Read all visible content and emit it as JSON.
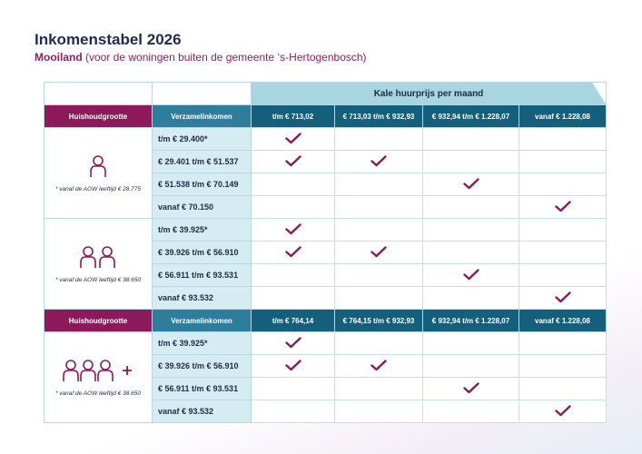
{
  "title": "Inkomenstabel 2026",
  "subtitle": {
    "bold": "Mooiland",
    "rest": " (voor de woningen buiten de gemeente ‘s-Hertogenbosch)"
  },
  "header": {
    "kale": "Kale huurprijs per maand"
  },
  "sections": [
    {
      "hh_label": "Huishoudgrootte",
      "vz_label": "Verzamelinkomen",
      "columns": [
        "t/m € 713,02",
        "€ 713,03 t/m € 932,93",
        "€ 932,94 t/m € 1.228,07",
        "vanaf € 1.228,08"
      ],
      "groups": [
        {
          "icon": "one-person-icon",
          "note": "* vanaf de AOW leeftijd € 28.775",
          "rows": [
            {
              "income": "t/m € 29.400*",
              "checks": [
                true,
                false,
                false,
                false
              ]
            },
            {
              "income": "€ 29.401 t/m € 51.537",
              "checks": [
                true,
                true,
                false,
                false
              ]
            },
            {
              "income": "€ 51.538 t/m € 70.149",
              "checks": [
                false,
                false,
                true,
                false
              ]
            },
            {
              "income": "vanaf € 70.150",
              "checks": [
                false,
                false,
                false,
                true
              ]
            }
          ]
        },
        {
          "icon": "two-persons-icon",
          "note": "* vanaf de AOW leeftijd € 38.650",
          "rows": [
            {
              "income": "t/m € 39.925*",
              "checks": [
                true,
                false,
                false,
                false
              ]
            },
            {
              "income": "€ 39.926 t/m € 56.910",
              "checks": [
                true,
                true,
                false,
                false
              ]
            },
            {
              "income": "€ 56.911 t/m € 93.531",
              "checks": [
                false,
                false,
                true,
                false
              ]
            },
            {
              "income": "vanaf € 93.532",
              "checks": [
                false,
                false,
                false,
                true
              ]
            }
          ]
        }
      ]
    },
    {
      "hh_label": "Huishoudgrootte",
      "vz_label": "Verzamelinkomen",
      "columns": [
        "t/m € 764,14",
        "€ 764,15 t/m € 932,93",
        "€ 932,94 t/m € 1.228,07",
        "vanaf € 1.228,08"
      ],
      "groups": [
        {
          "icon": "three-plus-persons-icon",
          "note": "* vanaf de AOW leeftijd € 38.650",
          "rows": [
            {
              "income": "t/m € 39.925*",
              "checks": [
                true,
                false,
                false,
                false
              ]
            },
            {
              "income": "€ 39.926 t/m € 56.910",
              "checks": [
                true,
                true,
                false,
                false
              ]
            },
            {
              "income": "€ 56.911 t/m € 93.531",
              "checks": [
                false,
                false,
                true,
                false
              ]
            },
            {
              "income": "vanaf € 93.532",
              "checks": [
                false,
                false,
                false,
                true
              ]
            }
          ]
        }
      ]
    }
  ],
  "colors": {
    "magenta": "#8c1a5a",
    "teal": "#2e7d9c",
    "dark_teal": "#145f7c",
    "light_blue": "#d6ecf3"
  }
}
